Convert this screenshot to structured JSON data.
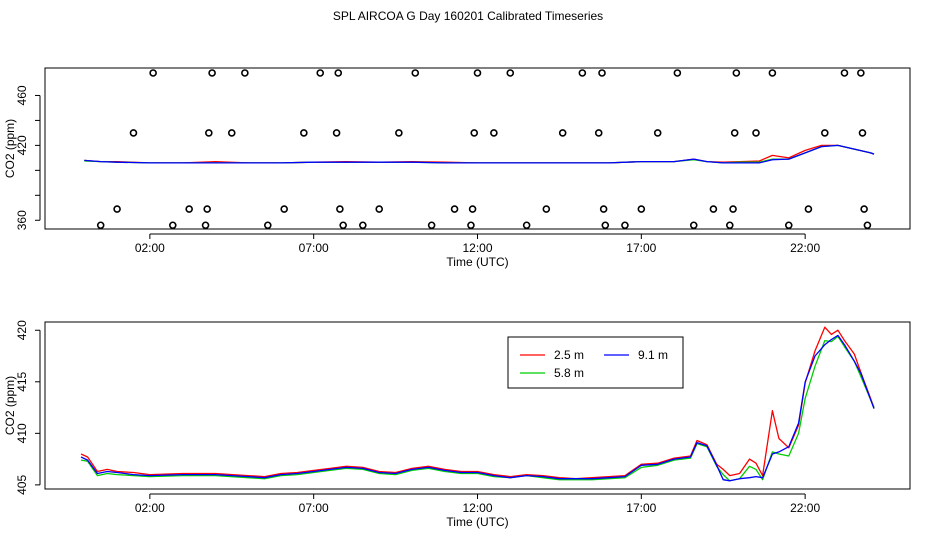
{
  "title": "SPL AIRCOA G  Day 160201  Calibrated Timeseries",
  "chart_data": [
    {
      "type": "line",
      "xlabel": "Time (UTC)",
      "ylabel": "CO2 (ppm)",
      "x_unit": "hours UTC",
      "xlim": [
        -1.2,
        25.2
      ],
      "ylim": [
        353,
        482
      ],
      "x_ticks": [
        2,
        7,
        12,
        17,
        22
      ],
      "x_tick_labels": [
        "02:00",
        "07:00",
        "12:00",
        "17:00",
        "22:00"
      ],
      "y_ticks": [
        360,
        380,
        400,
        420,
        440,
        460
      ],
      "y_tick_labels": [
        "360",
        "",
        "",
        "420",
        "",
        "460"
      ],
      "series": [
        {
          "name": "2.5 m",
          "color": "#ff0000",
          "x": [
            0,
            0.5,
            1,
            2,
            3,
            4,
            5,
            6,
            7,
            8,
            9,
            10,
            11,
            12,
            13,
            14,
            15,
            16,
            17,
            18,
            18.6,
            19,
            19.5,
            20,
            20.6,
            21,
            21.5,
            22,
            22.5,
            23,
            23.5,
            24,
            24.1
          ],
          "values": [
            408,
            407,
            407,
            406,
            406,
            407,
            406,
            406,
            406.5,
            407,
            406.5,
            407,
            406.5,
            406,
            406,
            406,
            406,
            406,
            407,
            407,
            409,
            407,
            406.5,
            407,
            407.5,
            412,
            410,
            416,
            420,
            420,
            417,
            414,
            413
          ]
        },
        {
          "name": "5.8 m",
          "color": "#00cd00",
          "x": [
            0,
            0.5,
            1,
            2,
            3,
            4,
            5,
            6,
            7,
            8,
            9,
            10,
            11,
            12,
            13,
            14,
            15,
            16,
            17,
            18,
            18.6,
            19,
            19.5,
            20,
            20.6,
            21,
            21.5,
            22,
            22.5,
            23,
            23.5,
            24,
            24.1
          ],
          "values": [
            407.5,
            407,
            406.5,
            406,
            406,
            406,
            406,
            406,
            406.5,
            406.5,
            406.5,
            406.5,
            406,
            406,
            406,
            406,
            406,
            406,
            407,
            407,
            408.5,
            407,
            406,
            406.5,
            406.5,
            409,
            409,
            414,
            419,
            420,
            417,
            414,
            413
          ]
        },
        {
          "name": "9.1 m",
          "color": "#0000ff",
          "x": [
            0,
            0.5,
            1,
            2,
            3,
            4,
            5,
            6,
            7,
            8,
            9,
            10,
            11,
            12,
            13,
            14,
            15,
            16,
            17,
            18,
            18.6,
            19,
            19.5,
            20,
            20.6,
            21,
            21.5,
            22,
            22.5,
            23,
            23.5,
            24,
            24.1
          ],
          "values": [
            408,
            407,
            406.5,
            406,
            406,
            406,
            406,
            406,
            406.5,
            406.5,
            406.5,
            406.5,
            406,
            406,
            406,
            406,
            406,
            406,
            407,
            407,
            409,
            407,
            406,
            406,
            406,
            408.5,
            409,
            414,
            419,
            420,
            417,
            414,
            413
          ]
        }
      ],
      "calibration_points": {
        "x": [
          0.5,
          1,
          1.5,
          2.1,
          2.7,
          3.2,
          3.7,
          3.75,
          3.8,
          3.9,
          4.5,
          4.9,
          5.6,
          6.1,
          6.7,
          7.2,
          7.7,
          7.75,
          7.8,
          7.9,
          8.5,
          9,
          9.6,
          10.1,
          10.6,
          11.3,
          11.8,
          11.85,
          11.9,
          12,
          12.5,
          13,
          13.5,
          14.1,
          14.6,
          15.2,
          15.7,
          15.8,
          15.85,
          15.9,
          16.5,
          17,
          17.5,
          18.1,
          18.6,
          19.2,
          19.7,
          19.8,
          19.85,
          19.9,
          20.5,
          21,
          21.5,
          22.1,
          22.6,
          23.2,
          23.7,
          23.75,
          23.8,
          23.9
        ],
        "values": [
          356,
          369,
          430,
          478,
          356,
          369,
          356,
          369,
          430,
          478,
          430,
          478,
          356,
          369,
          430,
          478,
          430,
          478,
          369,
          356,
          356,
          369,
          430,
          478,
          356,
          369,
          356,
          369,
          430,
          478,
          430,
          478,
          356,
          369,
          430,
          478,
          430,
          478,
          369,
          356,
          356,
          369,
          430,
          478,
          356,
          369,
          356,
          369,
          430,
          478,
          430,
          478,
          356,
          369,
          430,
          478,
          478,
          430,
          369,
          356
        ]
      }
    },
    {
      "type": "line",
      "xlabel": "Time (UTC)",
      "ylabel": "CO2 (ppm)",
      "x_unit": "hours UTC",
      "xlim": [
        -1.2,
        25.2
      ],
      "ylim": [
        404.6,
        420.8
      ],
      "x_ticks": [
        2,
        7,
        12,
        17,
        22
      ],
      "x_tick_labels": [
        "02:00",
        "07:00",
        "12:00",
        "17:00",
        "22:00"
      ],
      "y_ticks": [
        405,
        410,
        415,
        420
      ],
      "y_tick_labels": [
        "405",
        "410",
        "415",
        "420"
      ],
      "legend": {
        "placement": "top-center",
        "entries": [
          "2.5 m",
          "9.1 m",
          "5.8 m"
        ]
      },
      "series": [
        {
          "name": "2.5 m",
          "color": "#ff0000",
          "x": [
            -0.1,
            0.1,
            0.4,
            0.7,
            1.0,
            1.5,
            2,
            3,
            4,
            5,
            5.5,
            6,
            6.5,
            7,
            7.5,
            8,
            8.5,
            9,
            9.5,
            10,
            10.5,
            11,
            11.5,
            12,
            12.5,
            13,
            13.5,
            14,
            14.5,
            15,
            15.5,
            16,
            16.5,
            17,
            17.5,
            18,
            18.5,
            18.7,
            19,
            19.3,
            19.5,
            19.7,
            20,
            20.3,
            20.5,
            20.7,
            21,
            21.2,
            21.5,
            21.8,
            22,
            22.3,
            22.6,
            22.8,
            23,
            23.2,
            23.5,
            23.7,
            24.1
          ],
          "values": [
            408.0,
            407.7,
            406.3,
            406.5,
            406.3,
            406.2,
            406.0,
            406.1,
            406.1,
            405.9,
            405.8,
            406.1,
            406.2,
            406.4,
            406.6,
            406.8,
            406.7,
            406.3,
            406.2,
            406.6,
            406.8,
            406.5,
            406.3,
            406.3,
            406.0,
            405.8,
            406.0,
            405.9,
            405.7,
            405.6,
            405.7,
            405.8,
            405.9,
            407.0,
            407.1,
            407.6,
            407.8,
            409.3,
            408.9,
            407.0,
            406.5,
            405.9,
            406.1,
            407.5,
            407.1,
            405.9,
            412.2,
            409.5,
            408.6,
            410.8,
            414.9,
            418.0,
            420.3,
            419.6,
            420.0,
            419.0,
            417.7,
            415.9,
            412.5
          ]
        },
        {
          "name": "5.8 m",
          "color": "#00cd00",
          "x": [
            -0.1,
            0.1,
            0.4,
            0.7,
            1.0,
            1.5,
            2,
            3,
            4,
            5,
            5.5,
            6,
            6.5,
            7,
            7.5,
            8,
            8.5,
            9,
            9.5,
            10,
            10.5,
            11,
            11.5,
            12,
            12.5,
            13,
            13.5,
            14,
            14.5,
            15,
            15.5,
            16,
            16.5,
            17,
            17.5,
            18,
            18.5,
            18.7,
            19,
            19.3,
            19.5,
            19.7,
            20,
            20.3,
            20.5,
            20.7,
            21,
            21.2,
            21.5,
            21.8,
            22,
            22.3,
            22.6,
            22.8,
            23,
            23.2,
            23.5,
            23.7,
            24.1
          ],
          "values": [
            407.4,
            407.3,
            405.9,
            406.1,
            406.0,
            405.9,
            405.8,
            405.9,
            405.9,
            405.7,
            405.6,
            405.9,
            406.0,
            406.2,
            406.4,
            406.6,
            406.5,
            406.1,
            406.0,
            406.4,
            406.6,
            406.3,
            406.1,
            406.1,
            405.8,
            405.7,
            405.9,
            405.7,
            405.5,
            405.5,
            405.5,
            405.6,
            405.7,
            406.7,
            406.9,
            407.4,
            407.6,
            409.0,
            408.7,
            406.8,
            406.0,
            405.4,
            405.6,
            406.8,
            406.5,
            405.5,
            408.2,
            408.0,
            407.8,
            410.0,
            413.4,
            416.5,
            419.0,
            418.9,
            419.4,
            418.4,
            417.0,
            415.5,
            412.5
          ]
        },
        {
          "name": "9.1 m",
          "color": "#0000ff",
          "x": [
            -0.1,
            0.1,
            0.4,
            0.7,
            1.0,
            1.5,
            2,
            3,
            4,
            5,
            5.5,
            6,
            6.5,
            7,
            7.5,
            8,
            8.5,
            9,
            9.5,
            10,
            10.5,
            11,
            11.5,
            12,
            12.5,
            13,
            13.5,
            14,
            14.5,
            15,
            15.5,
            16,
            16.5,
            17,
            17.5,
            18,
            18.5,
            18.7,
            19,
            19.3,
            19.5,
            19.7,
            20,
            20.3,
            20.5,
            20.7,
            21,
            21.2,
            21.5,
            21.8,
            22,
            22.3,
            22.6,
            22.8,
            23,
            23.2,
            23.5,
            23.7,
            24.1
          ],
          "values": [
            407.7,
            407.4,
            406.1,
            406.3,
            406.2,
            406.0,
            405.9,
            406.0,
            406.0,
            405.8,
            405.7,
            406.0,
            406.1,
            406.3,
            406.5,
            406.7,
            406.6,
            406.2,
            406.1,
            406.5,
            406.7,
            406.4,
            406.2,
            406.2,
            405.9,
            405.7,
            405.9,
            405.8,
            405.6,
            405.6,
            405.6,
            405.7,
            405.8,
            406.9,
            407.0,
            407.5,
            407.7,
            409.1,
            408.8,
            406.9,
            405.5,
            405.4,
            405.6,
            405.7,
            405.8,
            405.7,
            408.0,
            408.2,
            408.7,
            411.0,
            415.0,
            417.5,
            418.6,
            419.1,
            419.5,
            418.6,
            417.0,
            415.8,
            412.4
          ]
        }
      ]
    }
  ]
}
